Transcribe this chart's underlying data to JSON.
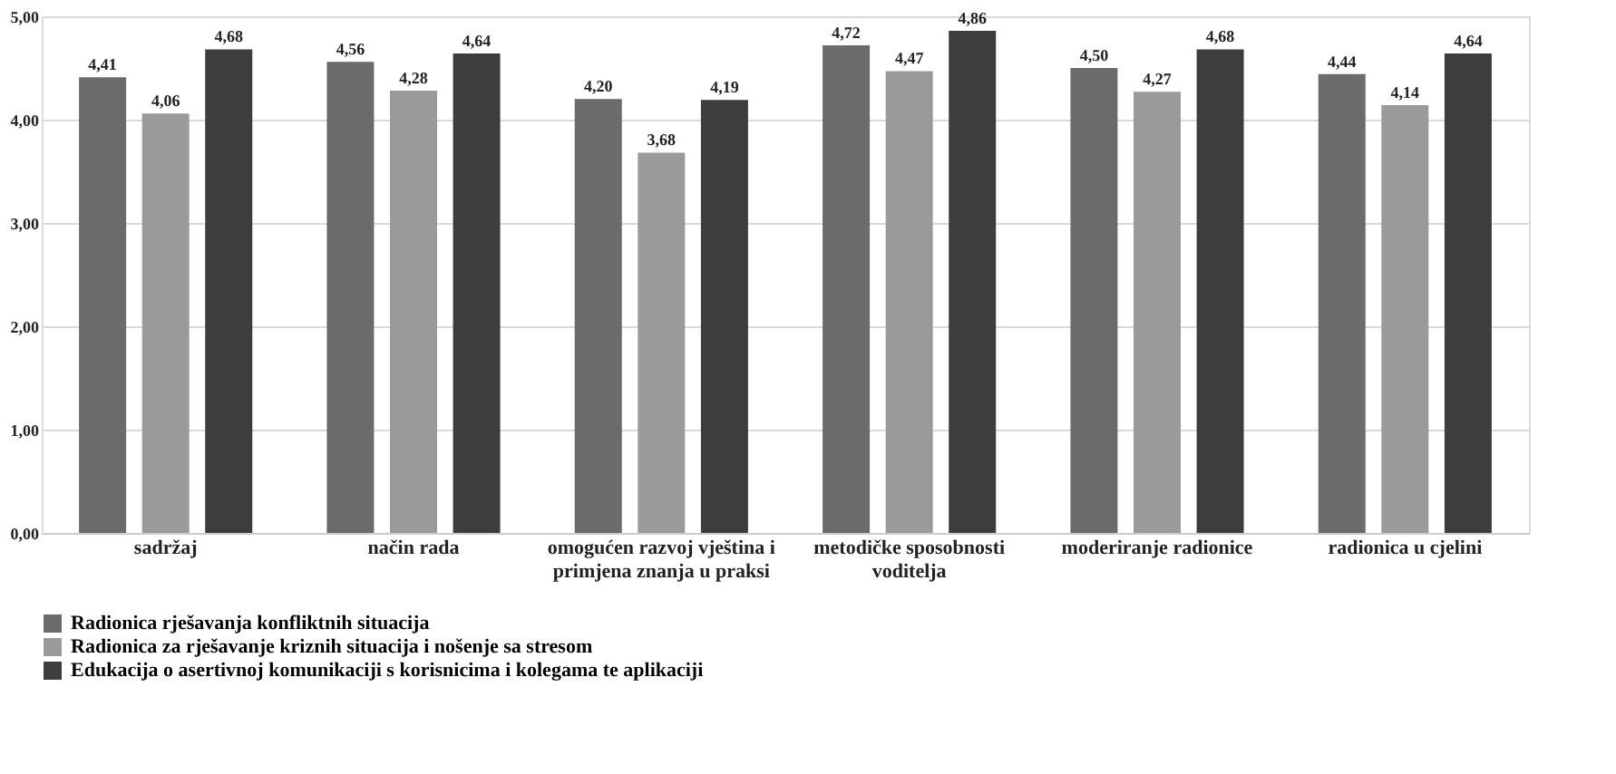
{
  "chart_data": {
    "type": "bar",
    "categories": [
      "sadržaj",
      "način rada",
      "omogućen razvoj vještina i primjena znanja u praksi",
      "metodičke sposobnosti voditelja",
      "moderiranje radionice",
      "radionica u cjelini"
    ],
    "series": [
      {
        "name": "Radionica rješavanja konfliktnih situacija",
        "color": "#6b6b6b",
        "values": [
          4.41,
          4.56,
          4.2,
          4.72,
          4.5,
          4.44
        ],
        "value_labels": [
          "4,41",
          "4,56",
          "4,20",
          "4,72",
          "4,50",
          "4,44"
        ]
      },
      {
        "name": "Radionica za rješavanje kriznih situacija i nošenje sa stresom",
        "color": "#9a9a9a",
        "values": [
          4.06,
          4.28,
          3.68,
          4.47,
          4.27,
          4.14
        ],
        "value_labels": [
          "4,06",
          "4,28",
          "3,68",
          "4,47",
          "4,27",
          "4,14"
        ]
      },
      {
        "name": "Edukacija o asertivnoj komunikaciji s korisnicima i kolegama te aplikaciji",
        "color": "#3d3d3d",
        "values": [
          4.68,
          4.64,
          4.19,
          4.86,
          4.68,
          4.64
        ],
        "value_labels": [
          "4,68",
          "4,64",
          "4,19",
          "4,86",
          "4,68",
          "4,64"
        ]
      }
    ],
    "ylim": [
      0,
      5
    ],
    "yticks": [
      {
        "value": 0,
        "label": "0,00"
      },
      {
        "value": 1,
        "label": "1,00"
      },
      {
        "value": 2,
        "label": "2,00"
      },
      {
        "value": 3,
        "label": "3,00"
      },
      {
        "value": 4,
        "label": "4,00"
      },
      {
        "value": 5,
        "label": "5,00"
      }
    ],
    "grid": "y",
    "legend": "bottom"
  }
}
